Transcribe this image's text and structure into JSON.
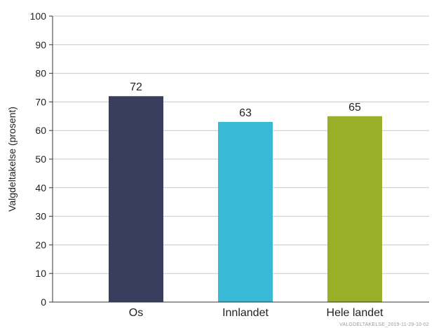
{
  "chart_data": {
    "type": "bar",
    "categories": [
      "Os",
      "Innlandet",
      "Hele landet"
    ],
    "values": [
      72,
      63,
      65
    ],
    "value_labels": [
      "72",
      "63",
      "65"
    ],
    "colors": [
      "#393d5e",
      "#38b9d6",
      "#9aaf28"
    ],
    "title": "",
    "xlabel": "",
    "ylabel": "Valgdeltakelse (prosent)",
    "ylim": [
      0,
      100
    ],
    "yticks": [
      0,
      10,
      20,
      30,
      40,
      50,
      60,
      70,
      80,
      90,
      100
    ],
    "ytick_labels": [
      "0",
      "10",
      "20",
      "30",
      "40",
      "50",
      "60",
      "70",
      "80",
      "90",
      "100"
    ],
    "grid": true
  },
  "footer": {
    "watermark": "VALGDELTAKELSE_2019-11-29-10-02"
  }
}
